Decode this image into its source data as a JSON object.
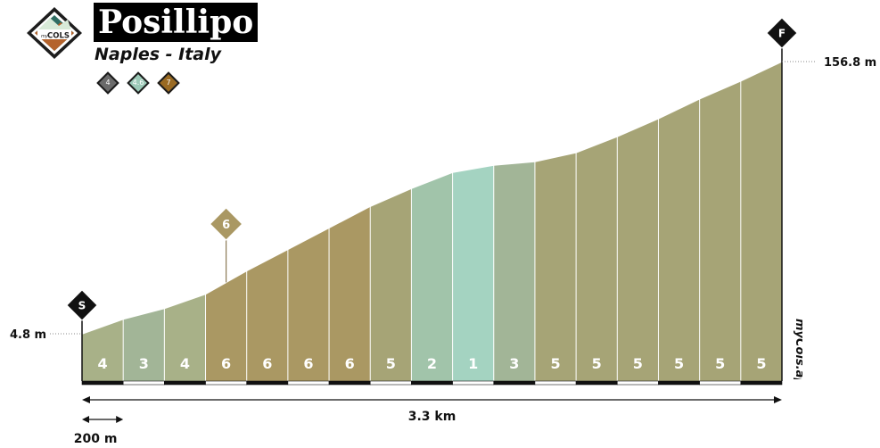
{
  "header": {
    "title": "Posillipo",
    "subtitle": "Naples - Italy",
    "badges": [
      {
        "label": "4",
        "color": "#6b6b6b"
      },
      {
        "label": "4.6",
        "color": "#9ccab8"
      },
      {
        "label": "7",
        "color": "#9a6a22"
      }
    ]
  },
  "logo": {
    "text_small": "my",
    "text_big": "COLS",
    "icon": "mountain-diamond-icon"
  },
  "brand": {
    "label": "myCols.app"
  },
  "chart_data": {
    "type": "area",
    "segment_length_m": 200,
    "segments": [
      4,
      3,
      4,
      6,
      6,
      6,
      6,
      5,
      2,
      1,
      3,
      5,
      5,
      5,
      5,
      5,
      5
    ],
    "altitudes": [
      4.8,
      13,
      19,
      27,
      40,
      52,
      64,
      76,
      86,
      95,
      99,
      101,
      106,
      115,
      125,
      136,
      146,
      156.8
    ],
    "colors": {
      "1": "#a4d3c1",
      "2": "#a1c4aa",
      "3": "#a2b597",
      "4": "#a8b188",
      "5": "#a6a476",
      "6": "#aa9863",
      "7": "#9a6a22"
    },
    "start_marker": "S",
    "finish_marker": "F",
    "start_altitude_label": "4.8 m",
    "finish_altitude_label": "156.8 m",
    "total_distance_label": "3.3 km",
    "scale_label": "200 m",
    "peak_marker": {
      "label": "6",
      "segment_index": 3
    }
  }
}
